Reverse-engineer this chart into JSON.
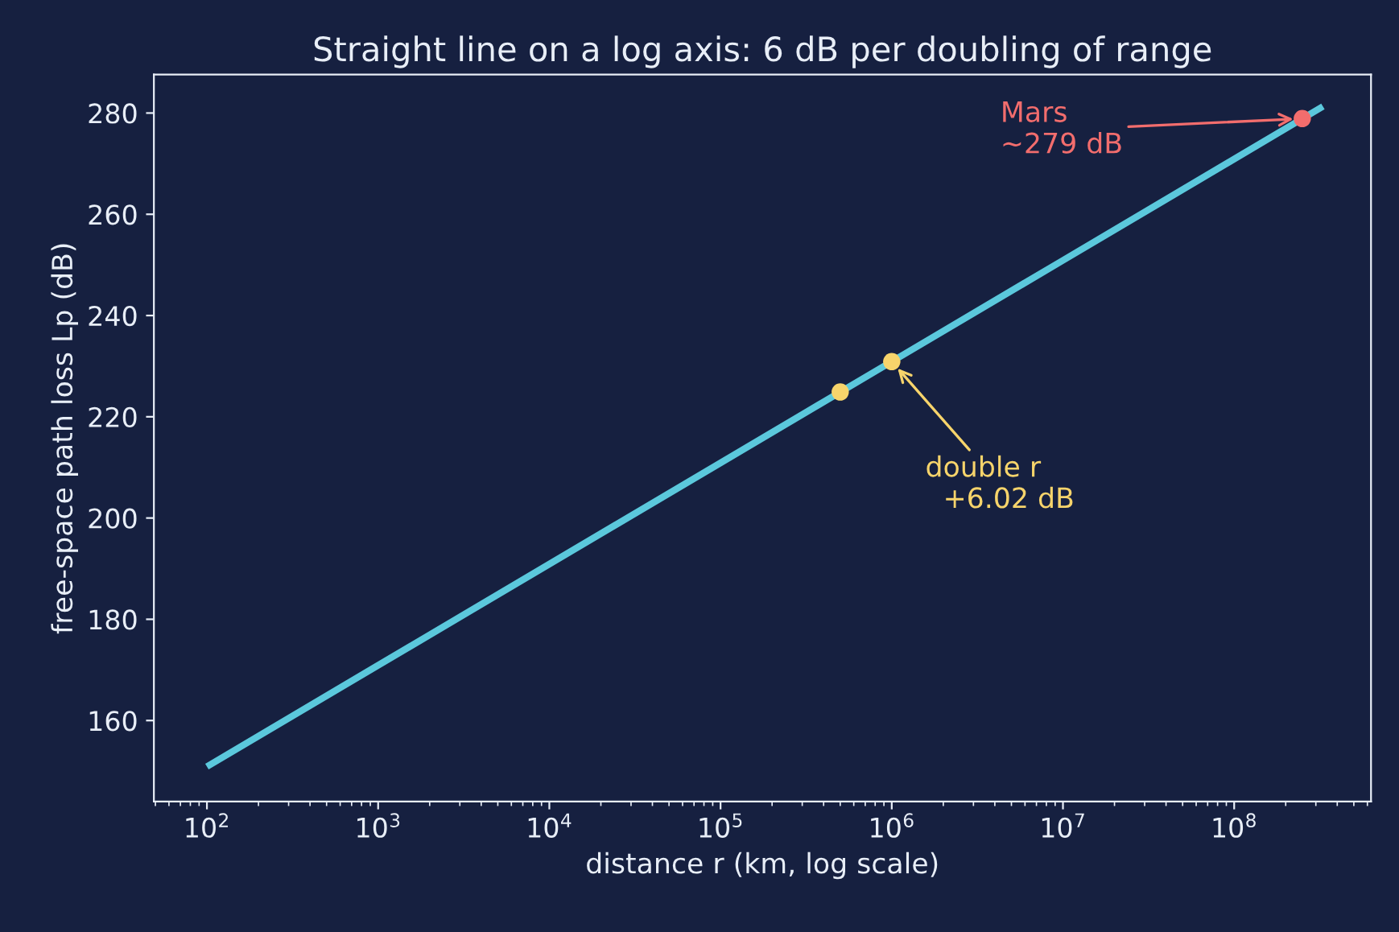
{
  "chart_data": {
    "type": "line",
    "title": "Straight line on a log axis: 6 dB per doubling of range",
    "xlabel": "distance r (km, log scale)",
    "ylabel": "free-space path loss Lp (dB)",
    "log": "x",
    "series": [
      {
        "color": "#5bc8dc",
        "x": [
          100,
          1000,
          10000,
          100000,
          1000000,
          10000000,
          100000000,
          330000000
        ],
        "values": [
          150.9,
          170.9,
          190.9,
          210.9,
          230.9,
          250.9,
          270.9,
          281.3
        ]
      },
      {
        "type": "scatter",
        "color": "#f7d46b",
        "x": [
          500000,
          1000000
        ],
        "values": [
          224.9,
          230.9
        ]
      },
      {
        "type": "scatter",
        "color": "#f26d6d",
        "x": [
          250000000
        ],
        "values": [
          278.9
        ]
      }
    ],
    "annotations": [
      {
        "text": "double r\n  +6.02 dB",
        "x": 1000000,
        "y": 230.9
      },
      {
        "text": "Mars\n~279 dB",
        "x": 250000000,
        "y": 278.9
      }
    ],
    "xlim": [
      49,
      630000000
    ],
    "xticks": [
      {
        "value": 100,
        "label": "10$^{2}$"
      },
      {
        "value": 1000,
        "label": "10$^{3}$"
      },
      {
        "value": 10000,
        "label": "10$^{4}$"
      },
      {
        "value": 100000,
        "label": "10$^{5}$"
      },
      {
        "value": 1000000,
        "label": "10$^{6}$"
      },
      {
        "value": 10000000,
        "label": "10$^{7}$"
      },
      {
        "value": 100000000,
        "label": "10$^{8}$"
      }
    ],
    "ylim": [
      144,
      287.6
    ],
    "yticks": [
      160,
      180,
      200,
      220,
      240,
      260,
      280
    ],
    "grid": false
  }
}
